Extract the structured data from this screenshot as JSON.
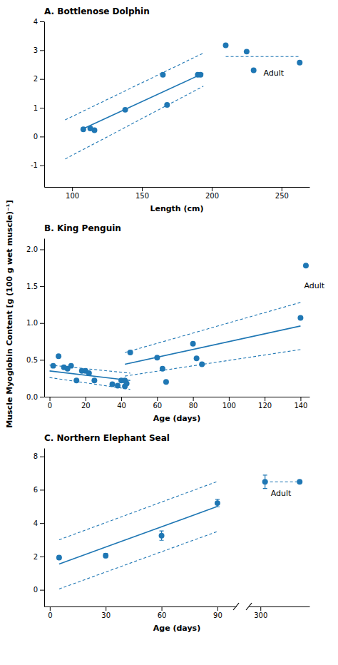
{
  "chart_data": [
    {
      "type": "scatter",
      "title": "A.  Bottlenose Dolphin",
      "xlabel": "Length (cm)",
      "xlim": [
        80,
        270
      ],
      "ylim": [
        -1.75,
        4.0
      ],
      "xticks": [
        100,
        150,
        200,
        250
      ],
      "yticks": [
        -1,
        0,
        1,
        2,
        3,
        4
      ],
      "series": [
        {
          "type": "line",
          "line_style": "solid",
          "x": [
            107,
            194
          ],
          "values": [
            0.25,
            2.2
          ]
        },
        {
          "type": "line",
          "line_style": "dashed",
          "x": [
            95,
            194
          ],
          "values": [
            0.58,
            2.9
          ]
        },
        {
          "type": "line",
          "line_style": "dashed",
          "x": [
            95,
            194
          ],
          "values": [
            -0.78,
            1.75
          ]
        },
        {
          "type": "scatter",
          "marker": "circle",
          "x": [
            108,
            113,
            116,
            138,
            165,
            168,
            190,
            192
          ],
          "values": [
            0.25,
            0.28,
            0.22,
            0.93,
            2.15,
            1.1,
            2.15,
            2.15
          ]
        },
        {
          "type": "scatter",
          "marker": "circle",
          "x": [
            210,
            225,
            230,
            263
          ],
          "values": [
            3.17,
            2.95,
            2.3,
            2.57
          ]
        },
        {
          "type": "line",
          "line_style": "dashed",
          "x": [
            210,
            263
          ],
          "values": [
            2.78,
            2.78
          ]
        }
      ],
      "annotations": [
        {
          "text": "Adult",
          "x": 237,
          "y": 2.18
        }
      ]
    },
    {
      "type": "scatter",
      "title": "B.  King Penguin",
      "xlabel": "Age (days)",
      "ylabel": "Muscle Myoglobin Content [g (100 g wet muscle)⁻¹]",
      "xlim": [
        -3,
        145
      ],
      "ylim": [
        0.0,
        2.15
      ],
      "xticks": [
        0,
        20,
        40,
        60,
        80,
        100,
        120,
        140
      ],
      "yticks": [
        {
          "value": 0.0,
          "label": "0.0"
        },
        0.5,
        {
          "value": 1.0,
          "label": "1.0"
        },
        1.5,
        {
          "value": 2.0,
          "label": "2.0"
        }
      ],
      "series": [
        {
          "type": "line",
          "line_style": "solid",
          "x": [
            0,
            45
          ],
          "values": [
            0.35,
            0.22
          ]
        },
        {
          "type": "line",
          "line_style": "dashed",
          "x": [
            0,
            45
          ],
          "values": [
            0.43,
            0.32
          ]
        },
        {
          "type": "line",
          "line_style": "dashed",
          "x": [
            0,
            45
          ],
          "values": [
            0.26,
            0.1
          ]
        },
        {
          "type": "line",
          "line_style": "solid",
          "x": [
            42,
            140
          ],
          "values": [
            0.44,
            0.96
          ]
        },
        {
          "type": "line",
          "line_style": "dashed",
          "x": [
            42,
            140
          ],
          "values": [
            0.6,
            1.28
          ]
        },
        {
          "type": "line",
          "line_style": "dashed",
          "x": [
            42,
            140
          ],
          "values": [
            0.28,
            0.64
          ]
        },
        {
          "type": "scatter",
          "marker": "circle",
          "x": [
            2,
            5,
            8,
            10,
            12,
            15,
            18,
            20,
            22,
            25,
            35,
            38,
            40,
            42,
            42,
            43,
            45,
            60,
            63,
            65,
            80,
            82,
            85,
            140
          ],
          "values": [
            0.42,
            0.55,
            0.4,
            0.38,
            0.42,
            0.22,
            0.35,
            0.35,
            0.32,
            0.22,
            0.17,
            0.15,
            0.22,
            0.14,
            0.22,
            0.18,
            0.6,
            0.53,
            0.38,
            0.2,
            0.72,
            0.52,
            0.44,
            1.07
          ]
        },
        {
          "type": "scatter",
          "marker": "circle",
          "x": [
            143
          ],
          "values": [
            1.78
          ]
        }
      ],
      "annotations": [
        {
          "text": "Adult",
          "x": 142,
          "y": 1.5
        }
      ]
    },
    {
      "type": "scatter",
      "title": "C.  Northern Elephant Seal",
      "xlabel": "Age (days)",
      "xlim": [
        [
          -3,
          100
        ],
        [
          280,
          385
        ]
      ],
      "ylim": [
        -1.0,
        8.5
      ],
      "xticks": [
        [
          0,
          30,
          60,
          90
        ],
        [
          300
        ]
      ],
      "yticks": [
        0,
        2,
        4,
        6,
        8
      ],
      "series": [
        {
          "type": "line",
          "line_style": "solid",
          "x": [
            5,
            90
          ],
          "values": [
            1.55,
            5.0
          ]
        },
        {
          "type": "line",
          "line_style": "dashed",
          "x": [
            5,
            90
          ],
          "values": [
            3.0,
            6.5
          ]
        },
        {
          "type": "line",
          "line_style": "dashed",
          "x": [
            5,
            90
          ],
          "values": [
            0.05,
            3.5
          ]
        },
        {
          "type": "scatter",
          "marker": "circle",
          "x": [
            5,
            30,
            60,
            90
          ],
          "values": [
            1.93,
            2.05,
            3.25,
            5.2
          ],
          "errors": [
            0.1,
            0.12,
            0.28,
            0.22
          ]
        },
        {
          "type": "scatter",
          "marker": "circle",
          "x": [
            308
          ],
          "values": [
            6.48
          ],
          "errors": [
            0.4
          ]
        },
        {
          "type": "scatter",
          "marker": "circle",
          "x": [
            368
          ],
          "values": [
            6.48
          ]
        },
        {
          "type": "line",
          "line_style": "dashed",
          "x": [
            308,
            368
          ],
          "values": [
            6.48,
            6.48
          ]
        }
      ],
      "annotations": [
        {
          "text": "Adult",
          "x": 318,
          "y": 5.75
        }
      ]
    }
  ]
}
